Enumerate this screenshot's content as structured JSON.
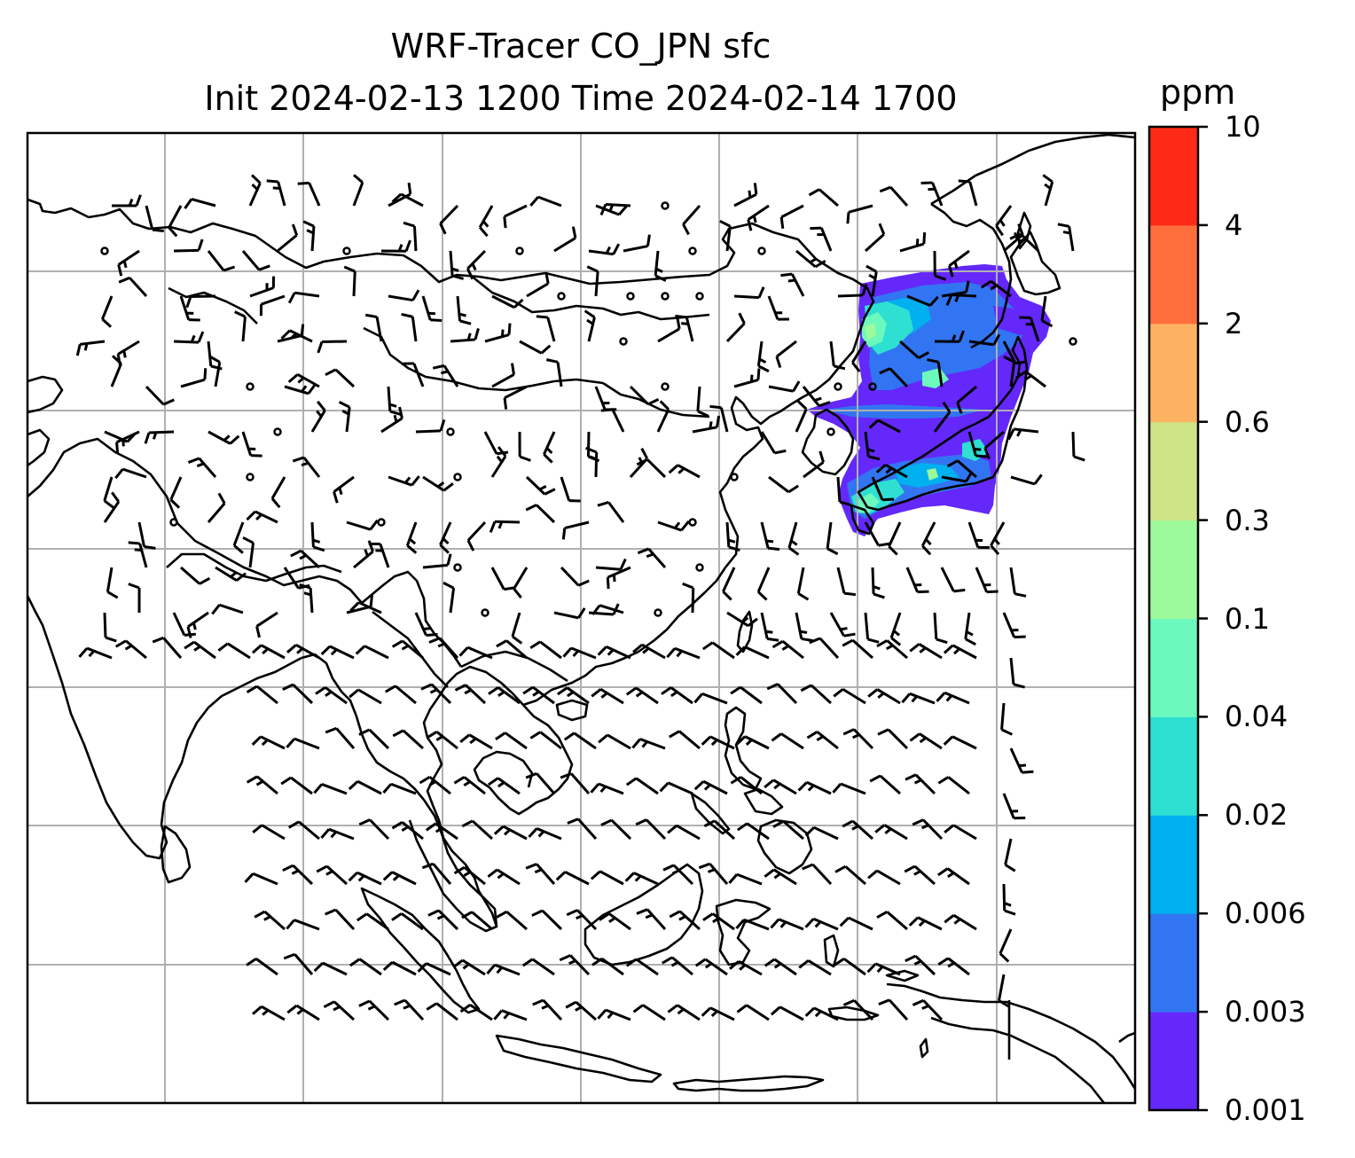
{
  "title": {
    "line1": "WRF-Tracer CO_JPN sfc",
    "line2": "Init 2024-02-13 1200 Time 2024-02-14 1700"
  },
  "map": {
    "type": "filled-contour-with-wind-barbs",
    "variable": "CO_JPN tracer",
    "level": "sfc",
    "gridlines": true,
    "region": "East and Southeast Asia",
    "plume_region": "Japan, Korea and the Sea of Japan",
    "colors": {
      "coast": "#000000",
      "grid": "#b0b0b0",
      "barb": "#000000"
    }
  },
  "colorbar": {
    "unit": "ppm",
    "levels": [
      "0.001",
      "0.003",
      "0.006",
      "0.02",
      "0.04",
      "0.1",
      "0.3",
      "0.6",
      "2",
      "4",
      "10"
    ],
    "colors": [
      "#6428fa",
      "#3275f3",
      "#01b0ee",
      "#2ee0d2",
      "#6cf9bd",
      "#9dfa9a",
      "#cfe387",
      "#fdb261",
      "#fe6e3c",
      "#fe2a17"
    ]
  }
}
